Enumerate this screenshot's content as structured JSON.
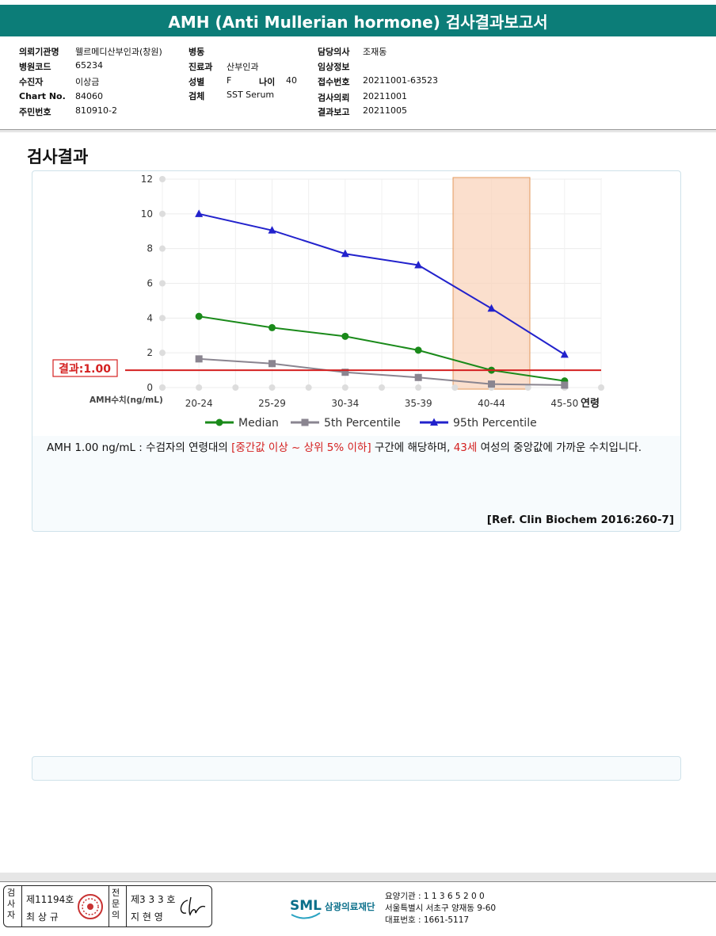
{
  "report_title": "AMH (Anti Mullerian hormone) 검사결과보고서",
  "header": {
    "hospital_label": "의뢰기관명",
    "hospital_value": "웰르메디산부인과(창원)",
    "ward_label": "병동",
    "ward_value": "",
    "doctor_label": "담당의사",
    "doctor_value": "조재동",
    "code_label": "병원코드",
    "code_value": "65234",
    "dept_label": "진료과",
    "dept_value": "산부인과",
    "clinical_label": "임상정보",
    "clinical_value": "",
    "patient_label": "수진자",
    "patient_value": "이상금",
    "sex_label": "성별",
    "sex_value": "F",
    "age_label": "나이",
    "age_value": "40",
    "receipt_label": "접수번호",
    "receipt_value": "20211001-63523",
    "chart_label": "Chart No.",
    "chart_value": "84060",
    "specimen_label": "검체",
    "specimen_value": "SST Serum",
    "request_label": "검사의뢰",
    "request_value": "20211001",
    "id_label": "주민번호",
    "id_value": "810910-2",
    "report_label": "결과보고",
    "report_value": "20211005"
  },
  "section_title": "검사결과",
  "result_label": "결과:1.00",
  "x_axis_label": "AMH수치(ng/mL)",
  "x_axis_unit": "연령",
  "chart_data": {
    "type": "line",
    "categories": [
      "20-24",
      "25-29",
      "30-34",
      "35-39",
      "40-44",
      "45-50"
    ],
    "ylim": [
      0,
      12
    ],
    "yticks": [
      0,
      2,
      4,
      6,
      8,
      10,
      12
    ],
    "series": [
      {
        "name": "Median",
        "color": "#1a8a1a",
        "marker": "circle",
        "values": [
          4.1,
          3.45,
          2.95,
          2.15,
          1.0,
          0.38
        ]
      },
      {
        "name": "5th Percentile",
        "color": "#8a8590",
        "marker": "square",
        "values": [
          1.65,
          1.38,
          0.88,
          0.58,
          0.2,
          0.14
        ]
      },
      {
        "name": "95th Percentile",
        "color": "#2222cc",
        "marker": "triangle",
        "values": [
          10.0,
          9.05,
          7.7,
          7.05,
          4.55,
          1.9
        ]
      }
    ],
    "result_value": 1.0,
    "highlight_category": "40-44",
    "legend_position": "bottom",
    "grid": true
  },
  "interpretation": {
    "part1": "AMH  1.00 ng/mL : 수검자의 연령대의 ",
    "range_text": "[중간값 이상 ~ 상위 5% 이하]",
    "part2": "  구간에 해당하며, ",
    "age_text": "43세",
    "part3": " 여성의 중앙값에 가까운 수치입니다."
  },
  "reference": "[Ref. Clin Biochem 2016:260-7]",
  "footer": {
    "examiner_title": "검사자",
    "examiner_no": "제11194호",
    "examiner_name": "최 상 규",
    "specialist_title": "전문의",
    "specialist_no": "제3 3 3 호",
    "specialist_name": "지 현 영",
    "org_logo": "SML",
    "org_name": "삼광의료재단",
    "facility_code": "요양기관 : 1 1 3 6 5 2 0 0",
    "address": "서울특별시 서초구 양재동 9-60",
    "phone": "대표번호 : 1661-5117"
  },
  "colors": {
    "title_bar": "#0c7d78",
    "result_line": "#d42020",
    "highlight": "#f9d4bc"
  }
}
